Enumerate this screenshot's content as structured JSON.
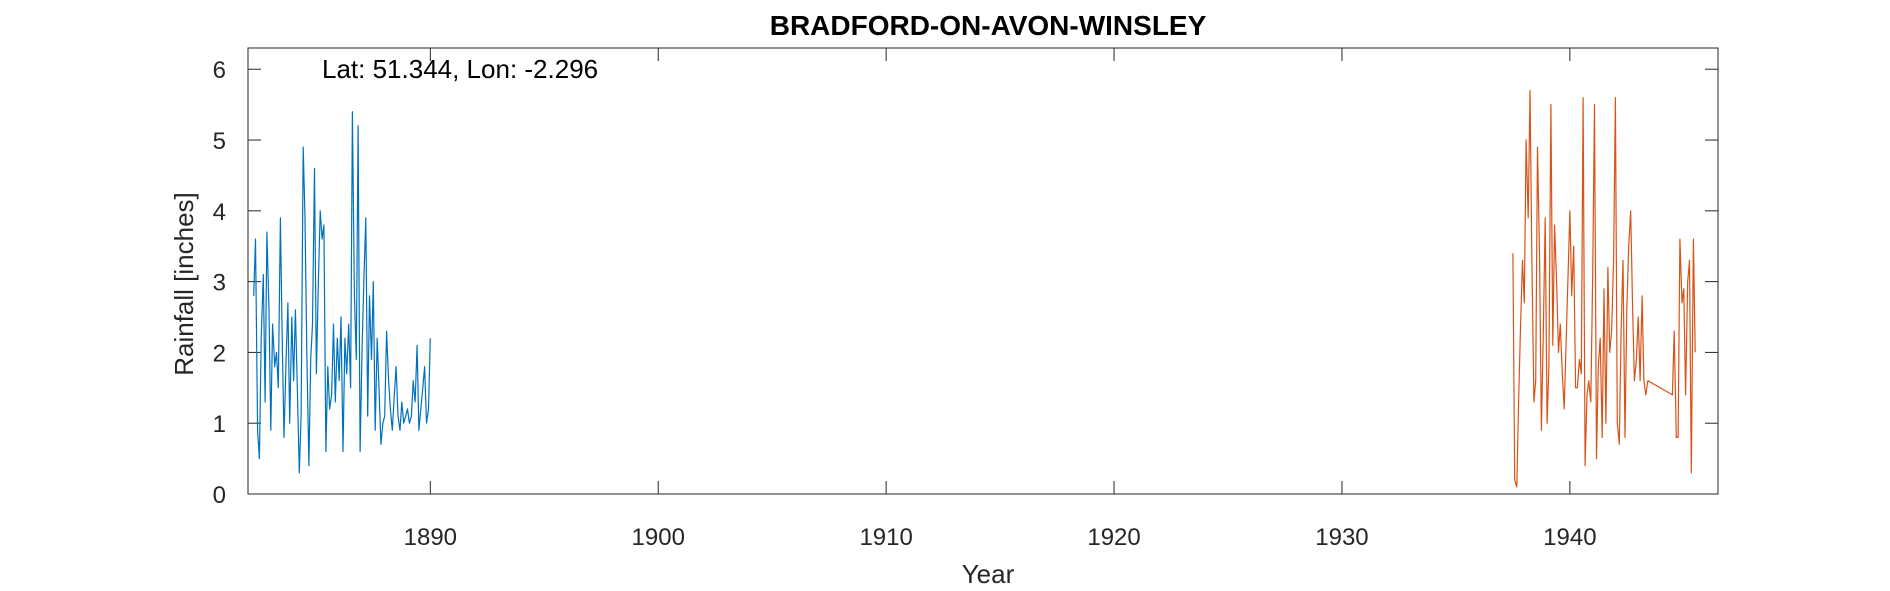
{
  "chart_data": {
    "type": "line",
    "title": "BRADFORD-ON-AVON-WINSLEY",
    "xlabel": "Year",
    "ylabel": "Rainfall [inches]",
    "annotation": "Lat: 51.344, Lon: -2.296",
    "xlim": [
      1882,
      1946.5
    ],
    "ylim": [
      0,
      6.3
    ],
    "xticks": [
      1890,
      1900,
      1910,
      1920,
      1930,
      1940
    ],
    "yticks": [
      0,
      1,
      2,
      3,
      4,
      5,
      6
    ],
    "grid": false,
    "legend": "none",
    "series": [
      {
        "color": "#0072BD",
        "x": [
          1882.25,
          1882.33,
          1882.42,
          1882.5,
          1882.58,
          1882.67,
          1882.75,
          1882.83,
          1882.92,
          1883.0,
          1883.08,
          1883.17,
          1883.25,
          1883.33,
          1883.42,
          1883.5,
          1883.58,
          1883.67,
          1883.75,
          1883.83,
          1883.92,
          1884.0,
          1884.08,
          1884.17,
          1884.25,
          1884.33,
          1884.42,
          1884.5,
          1884.58,
          1884.67,
          1884.75,
          1884.83,
          1884.92,
          1885.0,
          1885.08,
          1885.17,
          1885.25,
          1885.33,
          1885.42,
          1885.5,
          1885.58,
          1885.67,
          1885.75,
          1885.83,
          1885.92,
          1886.0,
          1886.08,
          1886.17,
          1886.25,
          1886.33,
          1886.42,
          1886.5,
          1886.58,
          1886.67,
          1886.75,
          1886.83,
          1886.92,
          1887.0,
          1887.08,
          1887.17,
          1887.25,
          1887.33,
          1887.42,
          1887.5,
          1887.58,
          1887.67,
          1887.75,
          1887.83,
          1887.92,
          1888.0,
          1888.08,
          1888.17,
          1888.25,
          1888.33,
          1888.42,
          1888.5,
          1888.58,
          1888.67,
          1888.75,
          1888.83,
          1888.92,
          1889.0,
          1889.08,
          1889.17,
          1889.25,
          1889.33,
          1889.42,
          1889.5,
          1889.58,
          1889.67,
          1889.75,
          1889.83,
          1889.92,
          1890.0
        ],
        "values": [
          2.8,
          3.6,
          0.9,
          0.5,
          2.2,
          3.1,
          1.3,
          3.7,
          2.6,
          0.9,
          2.4,
          1.8,
          2.0,
          1.5,
          3.9,
          2.2,
          0.8,
          1.9,
          2.7,
          1.0,
          2.5,
          1.6,
          2.6,
          1.4,
          0.3,
          1.1,
          4.9,
          3.9,
          2.0,
          0.4,
          1.9,
          2.4,
          4.6,
          1.7,
          2.9,
          4.0,
          3.6,
          3.8,
          0.6,
          1.8,
          1.2,
          1.4,
          2.4,
          1.3,
          2.2,
          1.6,
          2.5,
          0.6,
          2.2,
          1.7,
          2.4,
          1.5,
          5.4,
          2.8,
          1.9,
          5.2,
          0.6,
          2.0,
          3.0,
          3.9,
          1.1,
          2.8,
          1.9,
          3.0,
          0.9,
          2.2,
          1.5,
          0.7,
          1.0,
          1.1,
          2.3,
          1.6,
          1.2,
          0.9,
          1.4,
          1.8,
          1.1,
          0.9,
          1.3,
          1.0,
          1.1,
          1.2,
          1.0,
          1.1,
          1.6,
          1.3,
          2.1,
          0.9,
          1.2,
          1.5,
          1.8,
          1.0,
          1.2,
          2.2
        ]
      },
      {
        "color": "#D95319",
        "x": [
          1937.5,
          1937.58,
          1937.67,
          1937.75,
          1937.83,
          1937.92,
          1938.0,
          1938.08,
          1938.17,
          1938.25,
          1938.33,
          1938.42,
          1938.5,
          1938.58,
          1938.67,
          1938.75,
          1938.83,
          1938.92,
          1939.0,
          1939.08,
          1939.17,
          1939.25,
          1939.33,
          1939.42,
          1939.5,
          1939.58,
          1939.67,
          1939.75,
          1940.0,
          1940.08,
          1940.17,
          1940.25,
          1940.33,
          1940.42,
          1940.5,
          1940.58,
          1940.67,
          1940.75,
          1940.83,
          1940.92,
          1941.0,
          1941.08,
          1941.17,
          1941.25,
          1941.33,
          1941.42,
          1941.5,
          1941.58,
          1941.67,
          1941.75,
          1941.83,
          1941.92,
          1942.0,
          1942.08,
          1942.17,
          1942.25,
          1942.33,
          1942.42,
          1942.5,
          1942.58,
          1942.67,
          1942.75,
          1942.83,
          1942.92,
          1943.0,
          1943.08,
          1943.17,
          1943.25,
          1943.33,
          1943.42,
          1944.5,
          1944.58,
          1944.67,
          1944.75,
          1944.83,
          1944.92,
          1945.0,
          1945.08,
          1945.17,
          1945.25,
          1945.33,
          1945.42,
          1945.5
        ],
        "values": [
          3.4,
          0.2,
          0.1,
          1.3,
          2.3,
          3.3,
          2.7,
          5.0,
          3.9,
          5.7,
          3.4,
          1.3,
          1.6,
          4.9,
          3.4,
          0.9,
          2.2,
          3.9,
          1.0,
          1.8,
          5.5,
          2.1,
          3.8,
          3.0,
          2.0,
          2.4,
          1.7,
          1.2,
          4.0,
          2.8,
          3.5,
          1.5,
          1.5,
          1.9,
          1.7,
          5.6,
          0.4,
          1.4,
          1.6,
          1.3,
          3.1,
          5.5,
          0.5,
          1.8,
          2.2,
          0.8,
          2.9,
          1.0,
          3.2,
          2.0,
          2.3,
          3.3,
          5.6,
          1.0,
          0.7,
          2.3,
          3.3,
          0.8,
          2.6,
          3.5,
          4.0,
          2.7,
          1.6,
          1.9,
          2.5,
          1.6,
          2.8,
          1.6,
          1.4,
          1.6,
          1.4,
          2.3,
          0.8,
          0.8,
          3.6,
          2.7,
          2.9,
          1.4,
          3.0,
          3.3,
          0.3,
          3.6,
          2.0
        ]
      }
    ]
  }
}
